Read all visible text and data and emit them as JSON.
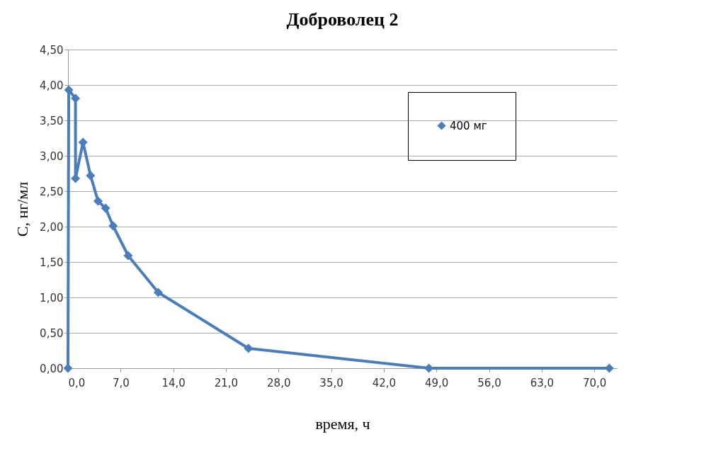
{
  "chart_data": {
    "type": "line",
    "title": "Доброволец 2",
    "xlabel": "время, ч",
    "ylabel": "С, нг/мл",
    "x": [
      0,
      0.1,
      1,
      1,
      2,
      3,
      4,
      5,
      6,
      8,
      12,
      24,
      48,
      72
    ],
    "series": [
      {
        "name": "400 мг",
        "color": "#4a7ebb",
        "values": [
          0,
          3.93,
          3.81,
          2.68,
          3.19,
          2.72,
          2.36,
          2.26,
          2.01,
          1.59,
          1.07,
          0.28,
          0,
          0
        ]
      }
    ],
    "xlim": [
      0,
      73
    ],
    "ylim": [
      0,
      4.5
    ],
    "xticks": [
      {
        "value": 0,
        "label": "0,0"
      },
      {
        "value": 7,
        "label": "7,0"
      },
      {
        "value": 14,
        "label": "14,0"
      },
      {
        "value": 21,
        "label": "21,0"
      },
      {
        "value": 28,
        "label": "28,0"
      },
      {
        "value": 35,
        "label": "35,0"
      },
      {
        "value": 42,
        "label": "42,0"
      },
      {
        "value": 49,
        "label": "49,0"
      },
      {
        "value": 56,
        "label": "56,0"
      },
      {
        "value": 63,
        "label": "63,0"
      },
      {
        "value": 70,
        "label": "70,0"
      }
    ],
    "yticks": [
      {
        "value": 0,
        "label": "0,00"
      },
      {
        "value": 0.5,
        "label": "0,50"
      },
      {
        "value": 1,
        "label": "1,00"
      },
      {
        "value": 1.5,
        "label": "1,50"
      },
      {
        "value": 2,
        "label": "2,00"
      },
      {
        "value": 2.5,
        "label": "2,50"
      },
      {
        "value": 3,
        "label": "3,00"
      },
      {
        "value": 3.5,
        "label": "3,50"
      },
      {
        "value": 4,
        "label": "4,00"
      },
      {
        "value": 4.5,
        "label": "4,50"
      }
    ],
    "grid": "y",
    "legend": "top right",
    "marker": "diamond",
    "line_style": "solid"
  }
}
